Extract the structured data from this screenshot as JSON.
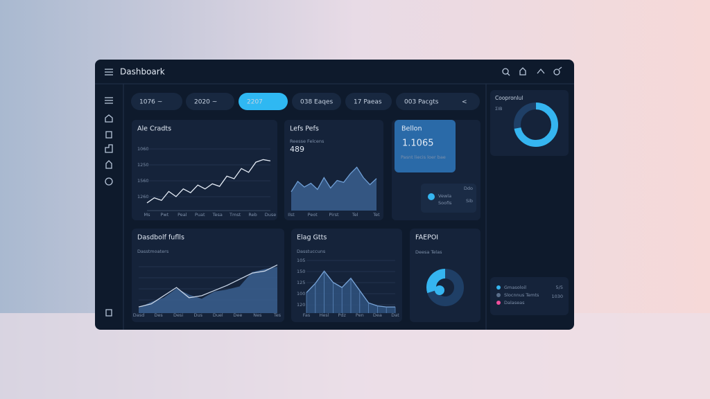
{
  "header": {
    "title": "Dashboark"
  },
  "filters": {
    "items": [
      "1076 ~",
      "2020 ~",
      "2207",
      "038 Eaqes",
      "17 Paeas",
      "003 Pacgts"
    ],
    "extra": "<",
    "active": 2
  },
  "line_card": {
    "title": "Ale Cradts",
    "y_labels": [
      "1060",
      "1250",
      "1560",
      "1260"
    ],
    "x_labels": [
      "Ms",
      "Pwt",
      "Peal",
      "Puat",
      "Tesa",
      "Tmst",
      "Reb",
      "Duse"
    ],
    "values": [
      12,
      20,
      16,
      30,
      22,
      34,
      28,
      40,
      34,
      42,
      38,
      54,
      50,
      66,
      60,
      76,
      80,
      78
    ],
    "ylim": [
      0,
      100
    ],
    "color": "#e6edf7"
  },
  "area_card": {
    "title": "Lefs Pefs",
    "subtitle": "Reesse Felcens",
    "value": "489",
    "x_labels": [
      "Ilst",
      "Peot",
      "Pirst",
      "Tel",
      "Tet"
    ],
    "values": [
      40,
      62,
      50,
      58,
      45,
      70,
      48,
      64,
      60,
      78,
      92,
      70,
      55,
      68
    ],
    "ylim": [
      0,
      100
    ],
    "color": "#3a5f8f"
  },
  "stat_card": {
    "title": "Bellon",
    "value": "1.1065",
    "note": "Pasnt liecis loer bae"
  },
  "legend_card": {
    "items": [
      "Vewla",
      "Soofis"
    ],
    "values": [
      "Ddo",
      "Sib"
    ]
  },
  "trend_card": {
    "title": "Dasdbolf fuflls",
    "subtitle": "Dasstmoaters",
    "x_labels": [
      "Dasd",
      "Des",
      "Desi",
      "Dus",
      "Duel",
      "Dee",
      "Nes",
      "Tes"
    ],
    "series": [
      {
        "name": "A",
        "color": "#3a5f8f",
        "values": [
          10,
          22,
          30,
          48,
          36,
          28,
          42,
          46,
          52,
          80,
          86,
          90
        ]
      },
      {
        "name": "B",
        "color": "#c9d6e8",
        "values": [
          12,
          18,
          34,
          50,
          30,
          34,
          44,
          54,
          66,
          78,
          82,
          94
        ]
      }
    ],
    "ylim": [
      0,
      100
    ]
  },
  "bar_card": {
    "title": "Elag Gtts",
    "subtitle": "Dasstuccuns",
    "y_labels": [
      "105",
      "150",
      "125",
      "100",
      "120"
    ],
    "x_labels": [
      "Fas",
      "Hesl",
      "Pdz",
      "Pen",
      "Dea",
      "Dat"
    ],
    "values": [
      40,
      58,
      82,
      60,
      50,
      68,
      44,
      20,
      14,
      12,
      12
    ],
    "ylim": [
      0,
      100
    ],
    "color": "#2f527f"
  },
  "donut_card": {
    "title": "FAEPOI",
    "subtitle": "Deesa Telas",
    "values": [
      70,
      30
    ],
    "colors": [
      "#1f3f66",
      "#35b5f0"
    ]
  },
  "side_card": {
    "title": "Coopronlul",
    "subtitle": "ΣΙΒ",
    "values": [
      72,
      28
    ],
    "colors": [
      "#35b5f0",
      "#1f3f66"
    ]
  },
  "side_legend": {
    "items": [
      "Gmasoloil",
      "Slocnnus Temts",
      "Dalaseas"
    ],
    "values": [
      "5/5",
      "1030"
    ],
    "colors": [
      "#35b5f0",
      "#5a6e8a",
      "#f04f9c"
    ]
  }
}
